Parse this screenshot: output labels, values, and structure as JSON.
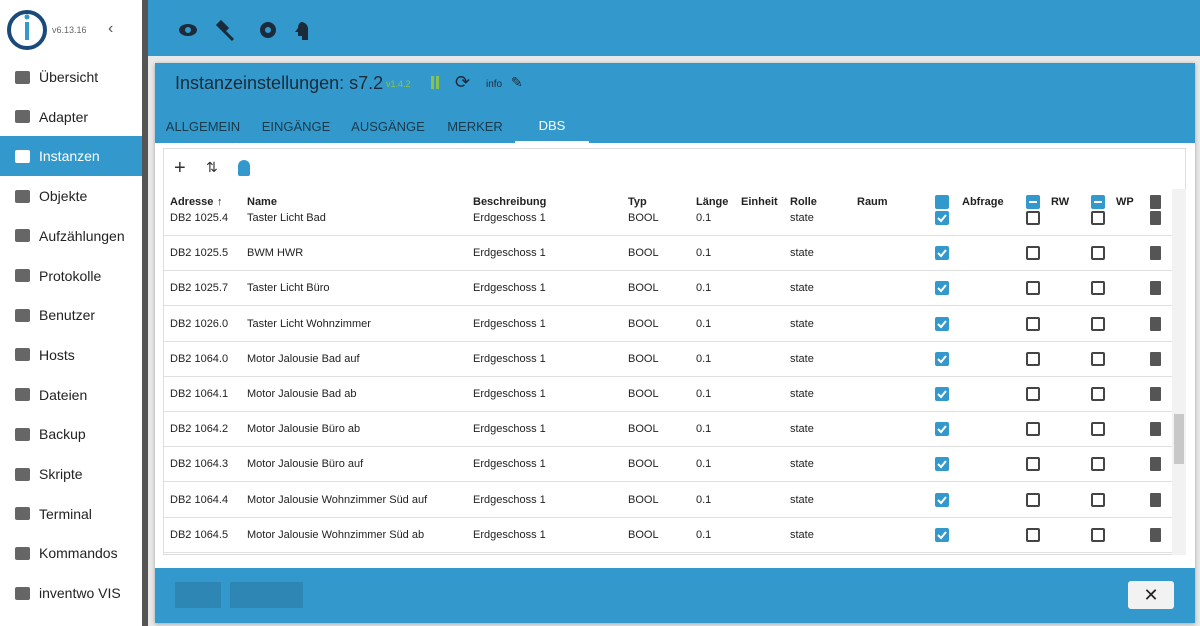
{
  "app": {
    "version": "v6.13.16"
  },
  "sidebar": {
    "items": [
      "Übersicht",
      "Adapter",
      "Instanzen",
      "Objekte",
      "Aufzählungen",
      "Protokolle",
      "Benutzer",
      "Hosts",
      "Dateien",
      "Backup",
      "Skripte",
      "Terminal",
      "Kommandos",
      "inventwo VIS"
    ],
    "active": 2
  },
  "header": {
    "title": "Instanzeinstellungen: s7.2",
    "version": "v1.4.2",
    "info": "info"
  },
  "tabs": {
    "items": [
      "ALLGEMEIN",
      "EINGÄNGE",
      "AUSGÄNGE",
      "MERKER",
      "DBS"
    ],
    "active": 4
  },
  "table": {
    "columns": [
      "Adresse",
      "Name",
      "Beschreibung",
      "Typ",
      "Länge",
      "Einheit",
      "Rolle",
      "Raum",
      "Abfrage",
      "RW",
      "WP"
    ],
    "rows": [
      [
        "DB2 1025.4",
        "Taster Licht Bad",
        "Erdgeschoss 1",
        "BOOL",
        "0.1",
        "state",
        true,
        false,
        false
      ],
      [
        "DB2 1025.5",
        "BWM HWR",
        "Erdgeschoss 1",
        "BOOL",
        "0.1",
        "state",
        true,
        false,
        false
      ],
      [
        "DB2 1025.7",
        "Taster Licht Büro",
        "Erdgeschoss 1",
        "BOOL",
        "0.1",
        "state",
        true,
        false,
        false
      ],
      [
        "DB2 1026.0",
        "Taster Licht Wohnzimmer",
        "Erdgeschoss 1",
        "BOOL",
        "0.1",
        "state",
        true,
        false,
        false
      ],
      [
        "DB2 1064.0",
        "Motor Jalousie Bad auf",
        "Erdgeschoss 1",
        "BOOL",
        "0.1",
        "state",
        true,
        false,
        false
      ],
      [
        "DB2 1064.1",
        "Motor Jalousie Bad ab",
        "Erdgeschoss 1",
        "BOOL",
        "0.1",
        "state",
        true,
        false,
        false
      ],
      [
        "DB2 1064.2",
        "Motor Jalousie Büro ab",
        "Erdgeschoss 1",
        "BOOL",
        "0.1",
        "state",
        true,
        false,
        false
      ],
      [
        "DB2 1064.3",
        "Motor Jalousie Büro auf",
        "Erdgeschoss 1",
        "BOOL",
        "0.1",
        "state",
        true,
        false,
        false
      ],
      [
        "DB2 1064.4",
        "Motor Jalousie Wohnzimmer Süd auf",
        "Erdgeschoss 1",
        "BOOL",
        "0.1",
        "state",
        true,
        false,
        false
      ],
      [
        "DB2 1064.5",
        "Motor Jalousie Wohnzimmer Süd ab",
        "Erdgeschoss 1",
        "BOOL",
        "0.1",
        "state",
        true,
        false,
        false
      ]
    ]
  }
}
